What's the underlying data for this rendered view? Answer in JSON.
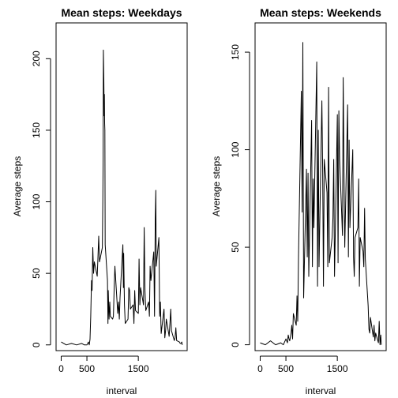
{
  "chart_data": [
    {
      "type": "line",
      "title": "Mean steps: Weekdays",
      "xlabel": "interval",
      "ylabel": "Average steps",
      "xlim": [
        -100,
        2450
      ],
      "ylim": [
        -4,
        225
      ],
      "xticks": [
        0,
        500,
        1500
      ],
      "yticks": [
        0,
        50,
        100,
        150,
        200
      ],
      "grid": false,
      "series": [
        {
          "x": [
            0,
            100,
            200,
            300,
            400,
            450,
            500,
            530,
            545,
            560,
            575,
            590,
            600,
            615,
            630,
            645,
            700,
            715,
            730,
            745,
            800,
            810,
            815,
            820,
            830,
            835,
            840,
            845,
            850,
            855,
            900,
            910,
            915,
            930,
            945,
            955,
            1000,
            1015,
            1030,
            1045,
            1100,
            1115,
            1130,
            1145,
            1200,
            1210,
            1215,
            1230,
            1245,
            1300,
            1315,
            1330,
            1345,
            1400,
            1415,
            1430,
            1445,
            1500,
            1515,
            1530,
            1545,
            1600,
            1615,
            1630,
            1645,
            1700,
            1715,
            1730,
            1745,
            1800,
            1815,
            1830,
            1840,
            1845,
            1850,
            1900,
            1915,
            1930,
            1945,
            2000,
            2015,
            2030,
            2045,
            2100,
            2115,
            2130,
            2145,
            2200,
            2215,
            2230,
            2245,
            2300,
            2315,
            2330,
            2345,
            2355
          ],
          "y": [
            2,
            0,
            1,
            0,
            1,
            0,
            0,
            2,
            0,
            4,
            20,
            45,
            38,
            68,
            50,
            58,
            48,
            62,
            76,
            58,
            68,
            100,
            130,
            206,
            185,
            160,
            175,
            155,
            150,
            70,
            45,
            15,
            38,
            18,
            30,
            20,
            18,
            20,
            40,
            55,
            22,
            30,
            18,
            33,
            70,
            40,
            64,
            28,
            15,
            18,
            40,
            38,
            25,
            28,
            15,
            38,
            24,
            22,
            60,
            28,
            40,
            28,
            82,
            38,
            24,
            30,
            20,
            55,
            45,
            65,
            20,
            88,
            108,
            80,
            55,
            75,
            20,
            30,
            8,
            25,
            5,
            10,
            18,
            6,
            15,
            25,
            10,
            3,
            5,
            12,
            3,
            2,
            1,
            1,
            2,
            0
          ]
        }
      ]
    },
    {
      "type": "line",
      "title": "Mean steps: Weekends",
      "xlabel": "interval",
      "ylabel": "Average steps",
      "xlim": [
        -100,
        2450
      ],
      "ylim": [
        -3,
        165
      ],
      "xticks": [
        0,
        500,
        1500
      ],
      "yticks": [
        0,
        50,
        100,
        150
      ],
      "grid": false,
      "series": [
        {
          "x": [
            0,
            100,
            200,
            300,
            400,
            450,
            500,
            530,
            545,
            560,
            575,
            600,
            615,
            630,
            645,
            700,
            715,
            730,
            745,
            800,
            815,
            830,
            845,
            900,
            910,
            915,
            930,
            945,
            1000,
            1015,
            1030,
            1045,
            1100,
            1115,
            1130,
            1145,
            1200,
            1215,
            1230,
            1245,
            1300,
            1315,
            1330,
            1345,
            1400,
            1415,
            1430,
            1445,
            1500,
            1515,
            1530,
            1545,
            1600,
            1615,
            1630,
            1645,
            1700,
            1715,
            1730,
            1745,
            1800,
            1815,
            1830,
            1845,
            1900,
            1915,
            1930,
            1945,
            2000,
            2015,
            2030,
            2045,
            2100,
            2115,
            2130,
            2145,
            2200,
            2215,
            2230,
            2245,
            2300,
            2315,
            2330,
            2345,
            2355
          ],
          "y": [
            1,
            0,
            2,
            0,
            1,
            0,
            3,
            1,
            5,
            3,
            2,
            6,
            10,
            3,
            16,
            10,
            25,
            12,
            45,
            130,
            68,
            155,
            24,
            90,
            60,
            45,
            88,
            35,
            115,
            40,
            85,
            60,
            145,
            30,
            110,
            40,
            125,
            90,
            30,
            95,
            78,
            40,
            132,
            42,
            55,
            65,
            95,
            35,
            118,
            42,
            120,
            95,
            56,
            137,
            90,
            50,
            123,
            45,
            105,
            60,
            100,
            45,
            35,
            55,
            60,
            85,
            30,
            55,
            48,
            40,
            70,
            44,
            20,
            8,
            6,
            14,
            4,
            10,
            2,
            6,
            1,
            12,
            0,
            5,
            0
          ]
        }
      ]
    }
  ]
}
